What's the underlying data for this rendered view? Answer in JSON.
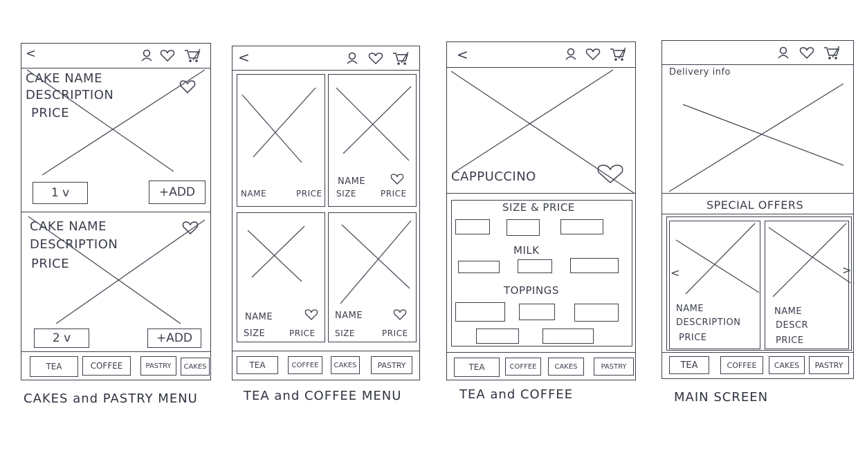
{
  "screens": [
    {
      "caption": "CAKES and PASTRY MENU",
      "back": "<",
      "items": [
        {
          "name": "CAKE NAME",
          "description": "DESCRIPTION",
          "price": "PRICE",
          "qty": "1 v",
          "add": "+ADD"
        },
        {
          "name": "CAKE NAME",
          "description": "DESCRIPTION",
          "price": "PRICE",
          "qty": "2 v",
          "add": "+ADD"
        }
      ],
      "tabs": [
        "TEA",
        "COFFEE",
        "PASTRY",
        "CAKES"
      ]
    },
    {
      "caption": "TEA and COFFEE MENU",
      "back": "<",
      "tiles": [
        {
          "name": "NAME",
          "price": "PRICE"
        },
        {
          "name": "NAME",
          "size": "SIZE",
          "price": "PRICE"
        },
        {
          "name": "NAME",
          "size": "SIZE",
          "price": "PRICE"
        },
        {
          "name": "NAME",
          "size": "SIZE",
          "price": "PRICE"
        }
      ],
      "tabs": [
        "TEA",
        "COFFEE",
        "CAKES",
        "PASTRY"
      ]
    },
    {
      "caption": "TEA and COFFEE",
      "back": "<",
      "product": "CAPPUCCINO",
      "sections": [
        "SIZE & PRICE",
        "MILK",
        "TOPPINGS"
      ],
      "tabs": [
        "TEA",
        "COFFEE",
        "CAKES",
        "PASTRY"
      ]
    },
    {
      "caption": "MAIN SCREEN",
      "delivery": "Delivery info",
      "offers_title": "SPECIAL OFFERS",
      "offers": [
        {
          "name": "NAME",
          "description": "DESCRIPTION",
          "price": "PRICE"
        },
        {
          "name": "NAME",
          "description": "DESCR",
          "price": "PRICE"
        }
      ],
      "arrow_left": "<",
      "arrow_right": ">",
      "tabs": [
        "TEA",
        "COFFEE",
        "CAKES",
        "PASTRY"
      ]
    }
  ],
  "icons": [
    "user-icon",
    "heart-icon",
    "cart-icon"
  ]
}
